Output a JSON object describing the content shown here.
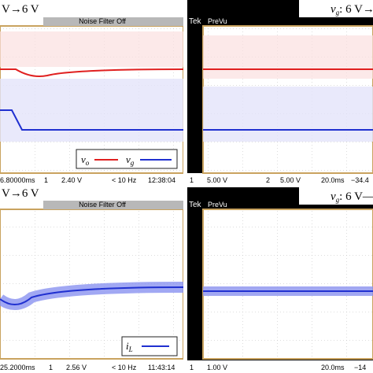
{
  "panels": [
    {
      "heading": "V→6 V",
      "banner": "Noise Filter Off",
      "legend": [
        {
          "symbol": "v",
          "sub": "o"
        },
        {
          "symbol": "v",
          "sub": "g"
        }
      ],
      "status": [
        "6.80000ms",
        "1",
        "2.40 V",
        "< 10 Hz",
        "12:38:04"
      ]
    },
    {
      "brand": "Tek",
      "mode": "PreVu",
      "heading": "6 V→",
      "heading_symbol": "v",
      "heading_sub": "g",
      "status": [
        "1",
        "5.00 V",
        "2",
        "5.00 V",
        "20.0ms",
        "−34.4"
      ]
    },
    {
      "heading": "V→6 V",
      "banner": "Noise Filter Off",
      "legend": [
        {
          "symbol": "i",
          "sub": "L"
        }
      ],
      "status": [
        "25.2000ms",
        "1",
        "2.56 V",
        "< 10 Hz",
        "11:43:14"
      ]
    },
    {
      "brand": "Tek",
      "mode": "PreVu",
      "heading": "6 V—",
      "heading_symbol": "v",
      "heading_sub": "g",
      "status": [
        "1",
        "1.00 V",
        "20.0ms",
        "−14"
      ]
    }
  ]
}
